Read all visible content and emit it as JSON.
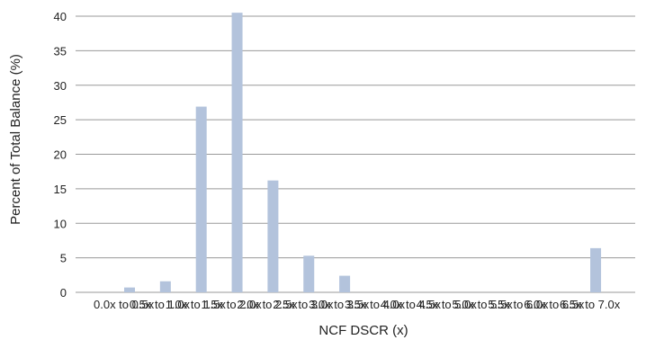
{
  "chart_data": {
    "type": "bar",
    "title": "",
    "xlabel": "NCF DSCR (x)",
    "ylabel": "Percent of Total Balance (%)",
    "ylim": [
      0,
      40
    ],
    "yticks": [
      0,
      5,
      10,
      15,
      20,
      25,
      30,
      35,
      40
    ],
    "grid": true,
    "bar_color": "#b3c3dc",
    "grid_color": "#999999",
    "categories": [
      "0.0x to 0.5x",
      "0.5x to 1.0x",
      "1.0x to 1.5x",
      "1.5x to 2.0x",
      "2.0x to 2.5x",
      "2.5x to 3.0x",
      "3.0x to 3.5x",
      "3.5x to 4.0x",
      "4.0x to 4.5x",
      "4.5x to 5.0x",
      "5.0x to 5.5x",
      "5.5x to 6.0x",
      "6.0x to 6.5x",
      "6.5x to 7.0x"
    ],
    "values": [
      0.7,
      1.6,
      26.9,
      40.5,
      16.2,
      5.3,
      2.4,
      0,
      0,
      0,
      0,
      0,
      0,
      6.4
    ]
  }
}
